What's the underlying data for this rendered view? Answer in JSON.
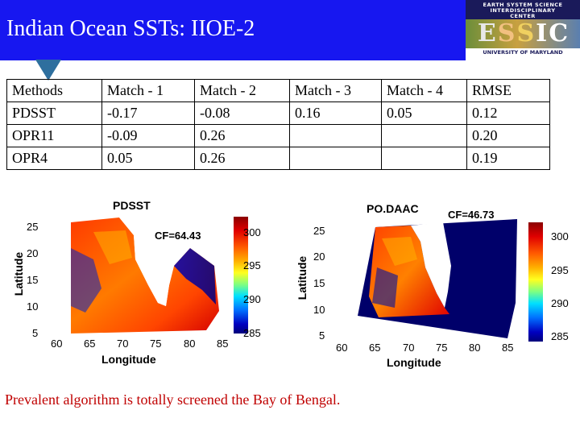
{
  "header": {
    "title": "Indian Ocean SSTs: IIOE-2",
    "bar_color": "#1717f0",
    "pointer_color": "#2e6f9e"
  },
  "logo": {
    "line1": "EARTH SYSTEM SCIENCE",
    "line2": "INTERDISCIPLINARY",
    "line3": "CENTER",
    "letters": [
      "E",
      "S",
      "S",
      "I",
      "C"
    ],
    "bottom": "UNIVERSITY OF MARYLAND"
  },
  "table": {
    "headers": [
      "Methods",
      "Match - 1",
      "Match - 2",
      "Match - 3",
      "Match - 4",
      "RMSE"
    ],
    "rows": [
      [
        "PDSST",
        "-0.17",
        "-0.08",
        "0.16",
        "0.05",
        "0.12"
      ],
      [
        "OPR11",
        "-0.09",
        "0.26",
        "",
        "",
        "0.20"
      ],
      [
        "OPR4",
        "0.05",
        "0.26",
        "",
        "",
        "0.19"
      ]
    ]
  },
  "maps": [
    {
      "title": "PDSST",
      "cf": "CF=64.43",
      "xlabel": "Longitude",
      "ylabel": "Latitude",
      "xticks": [
        "60",
        "65",
        "70",
        "75",
        "80",
        "85"
      ],
      "yticks": [
        "25",
        "20",
        "15",
        "10",
        "5"
      ],
      "colorbar_ticks": [
        "300",
        "295",
        "290",
        "285"
      ]
    },
    {
      "title": "PO.DAAC",
      "cf": "CF=46.73",
      "xlabel": "Longitude",
      "ylabel": "Latitude",
      "xticks": [
        "60",
        "65",
        "70",
        "75",
        "80",
        "85"
      ],
      "yticks": [
        "25",
        "20",
        "15",
        "10",
        "5"
      ],
      "colorbar_ticks": [
        "300",
        "295",
        "290",
        "285"
      ]
    }
  ],
  "caption": "Prevalent algorithm is totally screened the Bay of Bengal.",
  "caption_color": "#c00000"
}
